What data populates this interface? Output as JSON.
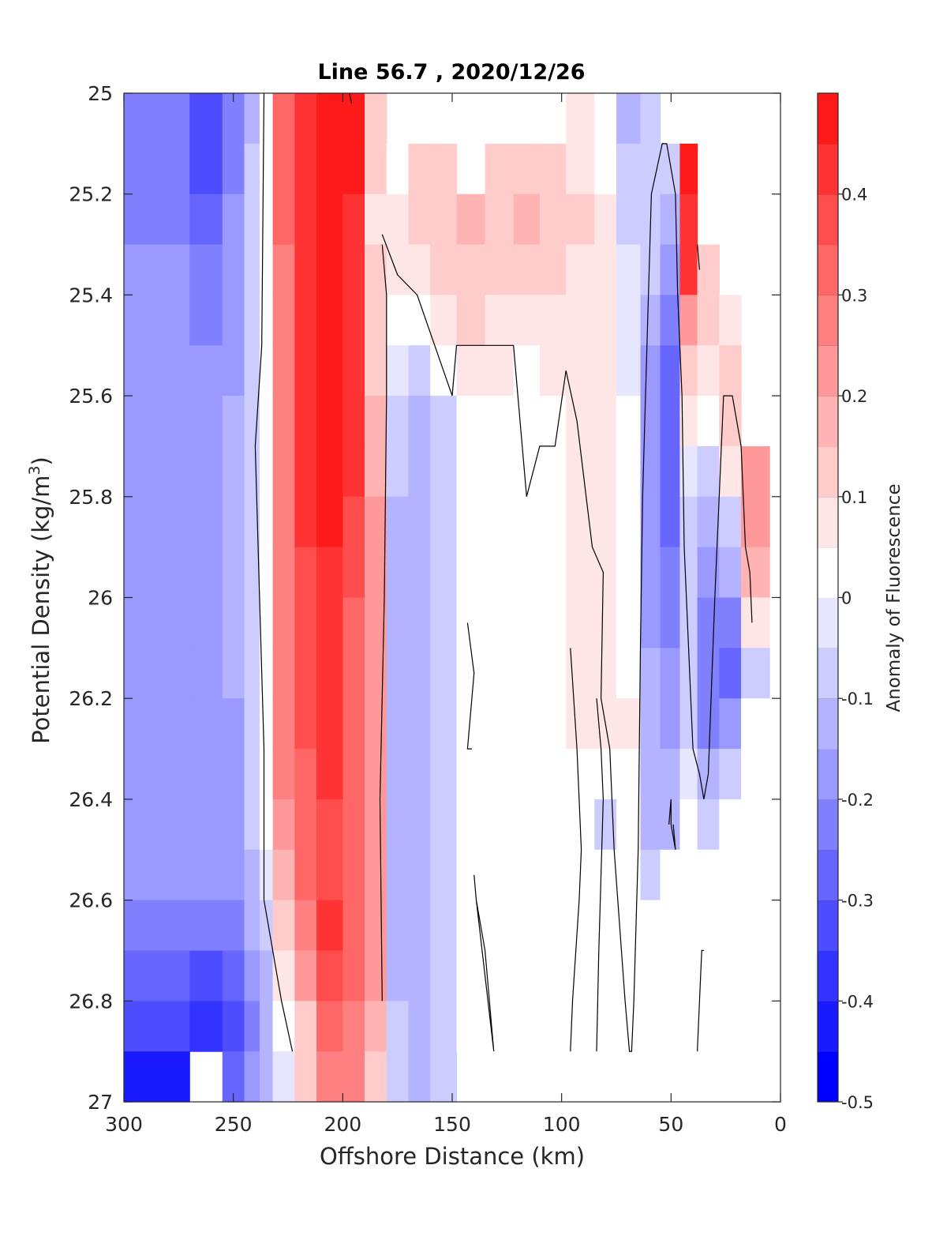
{
  "chart_data": {
    "type": "heatmap",
    "title": "Line 56.7 , 2020/12/26",
    "xlabel": "Offshore Distance (km)",
    "ylabel_main": "Potential Density (kg/m",
    "ylabel_sup": "3",
    "ylabel_close": ")",
    "colorbar_label": "Anomaly of Fluorescence",
    "xlim": [
      300,
      0
    ],
    "ylim": [
      25,
      27
    ],
    "x_reversed": true,
    "y_reversed": true,
    "xticks": [
      300,
      250,
      200,
      150,
      100,
      50,
      0
    ],
    "xtick_labels": [
      "300",
      "250",
      "200",
      "150",
      "100",
      "50",
      "0"
    ],
    "yticks": [
      25,
      25.2,
      25.4,
      25.6,
      25.8,
      26,
      26.2,
      26.4,
      26.6,
      26.8,
      27
    ],
    "ytick_labels": [
      "25",
      "25.2",
      "25.4",
      "25.6",
      "25.8",
      "26",
      "26.2",
      "26.4",
      "26.6",
      "26.8",
      "27"
    ],
    "clim": [
      -0.5,
      0.5
    ],
    "cticks": [
      -0.5,
      -0.4,
      -0.3,
      -0.2,
      -0.1,
      0,
      0.1,
      0.2,
      0.3,
      0.4
    ],
    "ctick_labels": [
      "-0.5",
      "-0.4",
      "-0.3",
      "-0.2",
      "-0.1",
      "0",
      "0.1",
      "0.2",
      "0.3",
      "0.4"
    ],
    "colormap_levels": [
      "#0000ff",
      "#1a1aff",
      "#3333ff",
      "#4d4dff",
      "#6666ff",
      "#8080ff",
      "#9999ff",
      "#b3b3ff",
      "#ccccff",
      "#e6e6ff",
      "#ffffff",
      "#ffe6e6",
      "#ffcccc",
      "#ffb3b3",
      "#ff9999",
      "#ff8080",
      "#ff6666",
      "#ff4d4d",
      "#ff3333",
      "#ff1a1a"
    ],
    "data_rows_density": [
      25.0,
      25.1,
      25.2,
      25.3,
      25.4,
      25.5,
      25.6,
      25.7,
      25.8,
      25.9,
      26.0,
      26.1,
      26.2,
      26.3,
      26.4,
      26.5,
      26.6,
      26.7,
      26.8,
      26.9
    ],
    "column_bands": [
      {
        "x_from": 300,
        "x_to": 270,
        "values": [
          -0.22,
          -0.22,
          -0.22,
          -0.2,
          -0.2,
          -0.2,
          -0.2,
          -0.2,
          -0.2,
          -0.2,
          -0.2,
          -0.2,
          -0.2,
          -0.2,
          -0.2,
          -0.2,
          -0.22,
          -0.3,
          -0.35,
          -0.4
        ]
      },
      {
        "x_from": 270,
        "x_to": 255,
        "values": [
          -0.35,
          -0.32,
          -0.28,
          -0.25,
          -0.22,
          -0.2,
          -0.2,
          -0.2,
          -0.2,
          -0.2,
          -0.2,
          -0.2,
          -0.2,
          -0.2,
          -0.2,
          -0.2,
          -0.25,
          -0.32,
          -0.38,
          null
        ]
      },
      {
        "x_from": 255,
        "x_to": 245,
        "values": [
          -0.25,
          -0.22,
          -0.2,
          -0.2,
          -0.18,
          -0.16,
          -0.15,
          -0.15,
          -0.15,
          -0.15,
          -0.15,
          -0.15,
          -0.16,
          -0.16,
          -0.16,
          -0.18,
          -0.22,
          -0.28,
          -0.35,
          -0.3
        ]
      },
      {
        "x_from": 245,
        "x_to": 238,
        "values": [
          -0.12,
          -0.1,
          -0.1,
          -0.1,
          -0.1,
          -0.1,
          -0.1,
          -0.1,
          -0.1,
          -0.1,
          -0.1,
          -0.1,
          -0.1,
          -0.1,
          -0.1,
          -0.12,
          -0.15,
          -0.2,
          -0.22,
          -0.2
        ]
      },
      {
        "x_from": 238,
        "x_to": 232,
        "values": [
          0,
          0,
          0,
          0,
          0,
          0,
          0,
          0,
          0,
          0,
          0,
          0,
          0,
          0,
          0,
          -0.05,
          -0.08,
          -0.12,
          -0.15,
          -0.12
        ]
      },
      {
        "x_from": 232,
        "x_to": 222,
        "values": [
          0.3,
          0.3,
          0.3,
          0.28,
          0.28,
          0.28,
          0.28,
          0.28,
          0.28,
          0.28,
          0.28,
          0.28,
          0.28,
          0.26,
          0.22,
          0.18,
          0.12,
          0.08,
          0.02,
          -0.05
        ]
      },
      {
        "x_from": 222,
        "x_to": 212,
        "values": [
          0.42,
          0.42,
          0.42,
          0.4,
          0.4,
          0.4,
          0.4,
          0.4,
          0.4,
          0.38,
          0.38,
          0.38,
          0.36,
          0.34,
          0.32,
          0.3,
          0.26,
          0.2,
          0.12,
          0.1
        ]
      },
      {
        "x_from": 212,
        "x_to": 200,
        "values": [
          0.48,
          0.48,
          0.48,
          0.48,
          0.48,
          0.48,
          0.48,
          0.46,
          0.46,
          0.44,
          0.42,
          0.4,
          0.4,
          0.4,
          0.38,
          0.38,
          0.4,
          0.36,
          0.3,
          0.28
        ]
      },
      {
        "x_from": 200,
        "x_to": 190,
        "values": [
          0.45,
          0.45,
          0.42,
          0.42,
          0.42,
          0.42,
          0.4,
          0.4,
          0.38,
          0.36,
          0.34,
          0.32,
          0.32,
          0.32,
          0.32,
          0.32,
          0.32,
          0.3,
          0.28,
          0.26
        ]
      },
      {
        "x_from": 190,
        "x_to": 180,
        "values": [
          0.1,
          0.12,
          0.08,
          0.1,
          0.12,
          0.14,
          0.16,
          0.18,
          0.2,
          0.2,
          0.2,
          0.2,
          0.2,
          0.2,
          0.2,
          0.2,
          0.2,
          0.2,
          0.15,
          0.1
        ]
      },
      {
        "x_from": 180,
        "x_to": 170,
        "values": [
          null,
          0.02,
          0.06,
          0.05,
          0.02,
          -0.05,
          -0.08,
          -0.1,
          -0.12,
          -0.12,
          -0.12,
          -0.12,
          -0.12,
          -0.14,
          -0.14,
          -0.14,
          -0.14,
          -0.12,
          -0.1,
          -0.08
        ]
      },
      {
        "x_from": 170,
        "x_to": 160,
        "values": [
          null,
          0.1,
          0.12,
          0.06,
          0.02,
          -0.06,
          -0.12,
          -0.15,
          -0.15,
          -0.12,
          -0.12,
          -0.12,
          -0.14,
          -0.15,
          -0.15,
          -0.15,
          -0.15,
          -0.12,
          -0.14,
          -0.15
        ]
      },
      {
        "x_from": 160,
        "x_to": 148,
        "values": [
          null,
          0.12,
          0.14,
          0.1,
          0.06,
          0.02,
          -0.06,
          -0.08,
          -0.08,
          -0.08,
          -0.08,
          -0.08,
          -0.08,
          -0.08,
          -0.08,
          -0.08,
          -0.08,
          -0.06,
          -0.06,
          -0.06
        ]
      },
      {
        "x_from": 148,
        "x_to": 135,
        "values": [
          null,
          null,
          0.16,
          0.14,
          0.1,
          0.06,
          0.02,
          0,
          0,
          0,
          0,
          0,
          0,
          0,
          0,
          0,
          0,
          0,
          0,
          null
        ]
      },
      {
        "x_from": 135,
        "x_to": 122,
        "values": [
          null,
          0.12,
          0.14,
          0.12,
          0.08,
          0.06,
          0.02,
          0,
          0,
          0,
          0,
          0,
          0,
          0,
          0,
          0,
          0,
          0,
          0,
          null
        ]
      },
      {
        "x_from": 122,
        "x_to": 110,
        "values": [
          null,
          0.12,
          0.16,
          0.12,
          0.08,
          0.04,
          0.02,
          0,
          0,
          0,
          0,
          0,
          0,
          0,
          0,
          0,
          0,
          0,
          0,
          null
        ]
      },
      {
        "x_from": 110,
        "x_to": 98,
        "values": [
          null,
          0.1,
          0.12,
          0.1,
          0.08,
          0.06,
          0.04,
          0.02,
          0,
          0,
          0,
          0,
          0,
          0,
          0,
          0,
          0,
          0,
          0,
          null
        ]
      },
      {
        "x_from": 98,
        "x_to": 85,
        "values": [
          0.06,
          0.08,
          0.1,
          0.08,
          0.08,
          0.08,
          0.06,
          0.06,
          0.06,
          0.06,
          0.06,
          0.06,
          0.06,
          0.02,
          0,
          0,
          0,
          0,
          0,
          null
        ]
      },
      {
        "x_from": 85,
        "x_to": 75,
        "values": [
          0.04,
          0.04,
          0.06,
          0.08,
          0.08,
          0.08,
          0.08,
          0.08,
          0.08,
          0.08,
          0.08,
          0.08,
          0.06,
          0.02,
          -0.06,
          0,
          0,
          0,
          0,
          0
        ]
      },
      {
        "x_from": 75,
        "x_to": 64,
        "values": [
          -0.15,
          -0.1,
          -0.06,
          -0.04,
          -0.02,
          -0.02,
          0,
          0,
          0,
          0.02,
          0.04,
          0.04,
          0.06,
          0,
          0,
          0,
          0,
          0,
          0,
          0
        ]
      },
      {
        "x_from": 64,
        "x_to": 55,
        "values": [
          -0.1,
          -0.1,
          -0.08,
          -0.1,
          -0.14,
          -0.16,
          -0.16,
          -0.18,
          -0.18,
          -0.18,
          -0.16,
          -0.14,
          -0.14,
          -0.14,
          -0.12,
          -0.1,
          0,
          0,
          0,
          0
        ]
      },
      {
        "x_from": 55,
        "x_to": 46,
        "values": [
          null,
          -0.06,
          -0.12,
          -0.18,
          -0.22,
          -0.26,
          -0.26,
          -0.26,
          -0.26,
          -0.24,
          -0.22,
          -0.2,
          -0.16,
          -0.14,
          -0.12,
          0,
          0,
          0,
          0,
          0
        ]
      },
      {
        "x_from": 46,
        "x_to": 38,
        "values": [
          null,
          0.46,
          0.44,
          0.4,
          0.24,
          0.14,
          0.06,
          -0.02,
          -0.06,
          -0.1,
          -0.06,
          -0.06,
          -0.06,
          -0.04,
          0,
          0,
          0,
          0,
          0,
          0
        ]
      },
      {
        "x_from": 38,
        "x_to": 28,
        "values": [
          null,
          null,
          null,
          0.12,
          0.1,
          0.08,
          0.02,
          -0.08,
          -0.14,
          -0.18,
          -0.22,
          -0.24,
          -0.22,
          -0.12,
          -0.06,
          0,
          0,
          0,
          0,
          0
        ]
      },
      {
        "x_from": 28,
        "x_to": 18,
        "values": [
          null,
          null,
          null,
          null,
          0.08,
          0.1,
          0.14,
          0.06,
          -0.06,
          -0.12,
          -0.22,
          -0.26,
          -0.16,
          -0.06,
          0,
          0,
          0,
          0,
          0,
          0
        ]
      },
      {
        "x_from": 18,
        "x_to": 5,
        "values": [
          null,
          null,
          null,
          null,
          null,
          null,
          null,
          0.22,
          0.24,
          0.18,
          0.06,
          -0.08,
          0,
          0,
          0,
          0,
          0,
          0,
          0,
          0
        ]
      }
    ],
    "zero_contours": [
      {
        "x": [
          236,
          237,
          240,
          238,
          236,
          236,
          236,
          228,
          223
        ],
        "y": [
          25.0,
          25.5,
          25.7,
          26.0,
          26.3,
          26.6,
          26.6,
          26.8,
          26.9
        ]
      },
      {
        "x": [
          197,
          196
        ],
        "y": [
          25.0,
          25.02
        ]
      },
      {
        "x": [
          182,
          183,
          181,
          180,
          180,
          182,
          182
        ],
        "y": [
          26.8,
          26.4,
          26.0,
          25.6,
          25.4,
          25.3,
          25.3
        ]
      },
      {
        "x": [
          182,
          175,
          166,
          150,
          148,
          143,
          130,
          126,
          122,
          120,
          116,
          110,
          103,
          98,
          93,
          86,
          81,
          82,
          78,
          76,
          71,
          69,
          68,
          67,
          65,
          64,
          63,
          61,
          59,
          54,
          52,
          48,
          47,
          45,
          44,
          41,
          40,
          37,
          35,
          33,
          30,
          27,
          26,
          22,
          18,
          16,
          14,
          13
        ],
        "y": [
          25.28,
          25.36,
          25.4,
          25.6,
          25.5,
          25.5,
          25.5,
          25.5,
          25.5,
          25.6,
          25.8,
          25.7,
          25.7,
          25.55,
          25.65,
          25.9,
          25.95,
          26.2,
          26.3,
          26.5,
          26.8,
          26.9,
          26.9,
          26.8,
          26.5,
          26.1,
          25.8,
          25.5,
          25.2,
          25.1,
          25.1,
          25.2,
          25.4,
          25.6,
          25.9,
          26.2,
          26.3,
          26.35,
          26.4,
          26.35,
          26.0,
          25.7,
          25.6,
          25.6,
          25.7,
          25.9,
          25.95,
          26.05
        ]
      },
      {
        "x": [
          143,
          140,
          143,
          141
        ],
        "y": [
          26.05,
          26.15,
          26.3,
          26.3
        ]
      },
      {
        "x": [
          140,
          139,
          131,
          135,
          139,
          140
        ],
        "y": [
          26.55,
          26.6,
          26.9,
          26.7,
          26.6,
          26.55
        ]
      },
      {
        "x": [
          96,
          95,
          92,
          91,
          93,
          96
        ],
        "y": [
          26.9,
          26.8,
          26.6,
          26.5,
          26.3,
          26.1
        ]
      },
      {
        "x": [
          84,
          83,
          81,
          82,
          84
        ],
        "y": [
          26.9,
          26.7,
          26.4,
          26.3,
          26.2
        ]
      },
      {
        "x": [
          51,
          50,
          50,
          48,
          49
        ],
        "y": [
          26.45,
          26.4,
          26.45,
          26.5,
          26.45
        ]
      },
      {
        "x": [
          38,
          37,
          36,
          35
        ],
        "y": [
          26.9,
          26.8,
          26.7,
          26.7
        ]
      },
      {
        "x": [
          38,
          37
        ],
        "y": [
          25.3,
          25.35
        ]
      }
    ]
  }
}
